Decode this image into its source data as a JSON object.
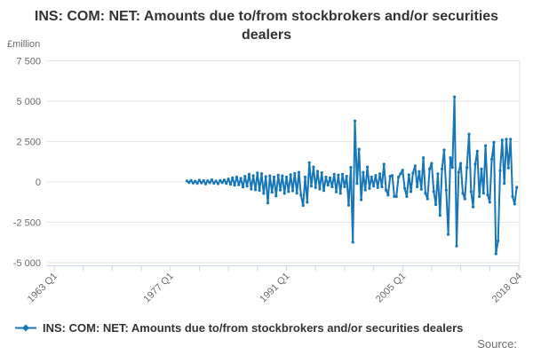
{
  "title": "INS: COM: NET: Amounts due to/from stockbrokers and/or securities dealers",
  "y_axis_unit": "£million",
  "source_label": "Source:",
  "legend": {
    "label": "INS: COM: NET: Amounts due to/from stockbrokers and/or securities dealers",
    "marker": "line-with-diamond-icon"
  },
  "colors": {
    "series": "#1776b8",
    "grid": "#e6e6e6",
    "axis_line": "#ccd6eb",
    "tick_text": "#6b6b6b",
    "title_text": "#333333",
    "legend_text": "#333333",
    "source_text": "#6e6e6e"
  },
  "chart_data": {
    "type": "line",
    "title": "INS: COM: NET: Amounts due to/from stockbrokers and/or securities dealers",
    "xlabel": "",
    "ylabel": "£million",
    "grid": "horizontal",
    "legend_position": "bottom-left",
    "y_axis": {
      "min": -5000,
      "max": 7500,
      "ticks": [
        7500,
        5000,
        2500,
        0,
        -2500,
        -5000
      ],
      "tick_labels": [
        "7 500",
        "5 000",
        "2 500",
        "0",
        "-2 500",
        "-5 000"
      ]
    },
    "x_axis": {
      "start": "1963 Q1",
      "end": "2018 Q4",
      "tick_labels": [
        "1963 Q1",
        "1977 Q1",
        "1991 Q1",
        "2005 Q1",
        "2018 Q4"
      ],
      "minor_tick_every_quarters": 14
    },
    "series": [
      {
        "name": "INS: COM: NET: Amounts due to/from stockbrokers and/or securities dealers",
        "color": "#1776b8",
        "start": "1979 Q1",
        "frequency": "quarterly",
        "values": [
          60,
          -40,
          90,
          -70,
          50,
          -90,
          110,
          -60,
          80,
          -120,
          70,
          -50,
          130,
          -80,
          60,
          -110,
          90,
          -40,
          120,
          -90,
          180,
          -150,
          250,
          -200,
          300,
          -180,
          220,
          -320,
          350,
          -250,
          470,
          -440,
          390,
          -490,
          560,
          -520,
          510,
          -710,
          330,
          -1300,
          380,
          -640,
          300,
          -870,
          420,
          -500,
          380,
          -710,
          300,
          -600,
          450,
          -550,
          520,
          -700,
          600,
          -820,
          -1460,
          300,
          -1260,
          1200,
          -260,
          930,
          -350,
          660,
          -440,
          570,
          -530,
          300,
          -200,
          250,
          -300,
          480,
          -620,
          430,
          -710,
          480,
          -300,
          350,
          -1440,
          900,
          -3730,
          3780,
          -100,
          2030,
          -1100,
          600,
          -500,
          930,
          -400,
          300,
          -250,
          400,
          -350,
          500,
          -300,
          1100,
          -500,
          -820,
          350,
          400,
          -900,
          -900,
          300,
          500,
          730,
          -400,
          -900,
          450,
          -600,
          550,
          1000,
          -300,
          650,
          -450,
          1500,
          -700,
          -1050,
          800,
          1150,
          -600,
          -1400,
          500,
          -2070,
          800,
          1980,
          -500,
          -3250,
          1500,
          900,
          5270,
          -3970,
          600,
          1150,
          -700,
          -1050,
          900,
          2960,
          -600,
          -1550,
          1100,
          1900,
          -900,
          800,
          -700,
          2250,
          -800,
          -1250,
          1400,
          2450,
          -4450,
          -3650,
          700,
          2600,
          -100,
          2650,
          860,
          2650,
          -900,
          -1370,
          -330
        ]
      }
    ]
  }
}
